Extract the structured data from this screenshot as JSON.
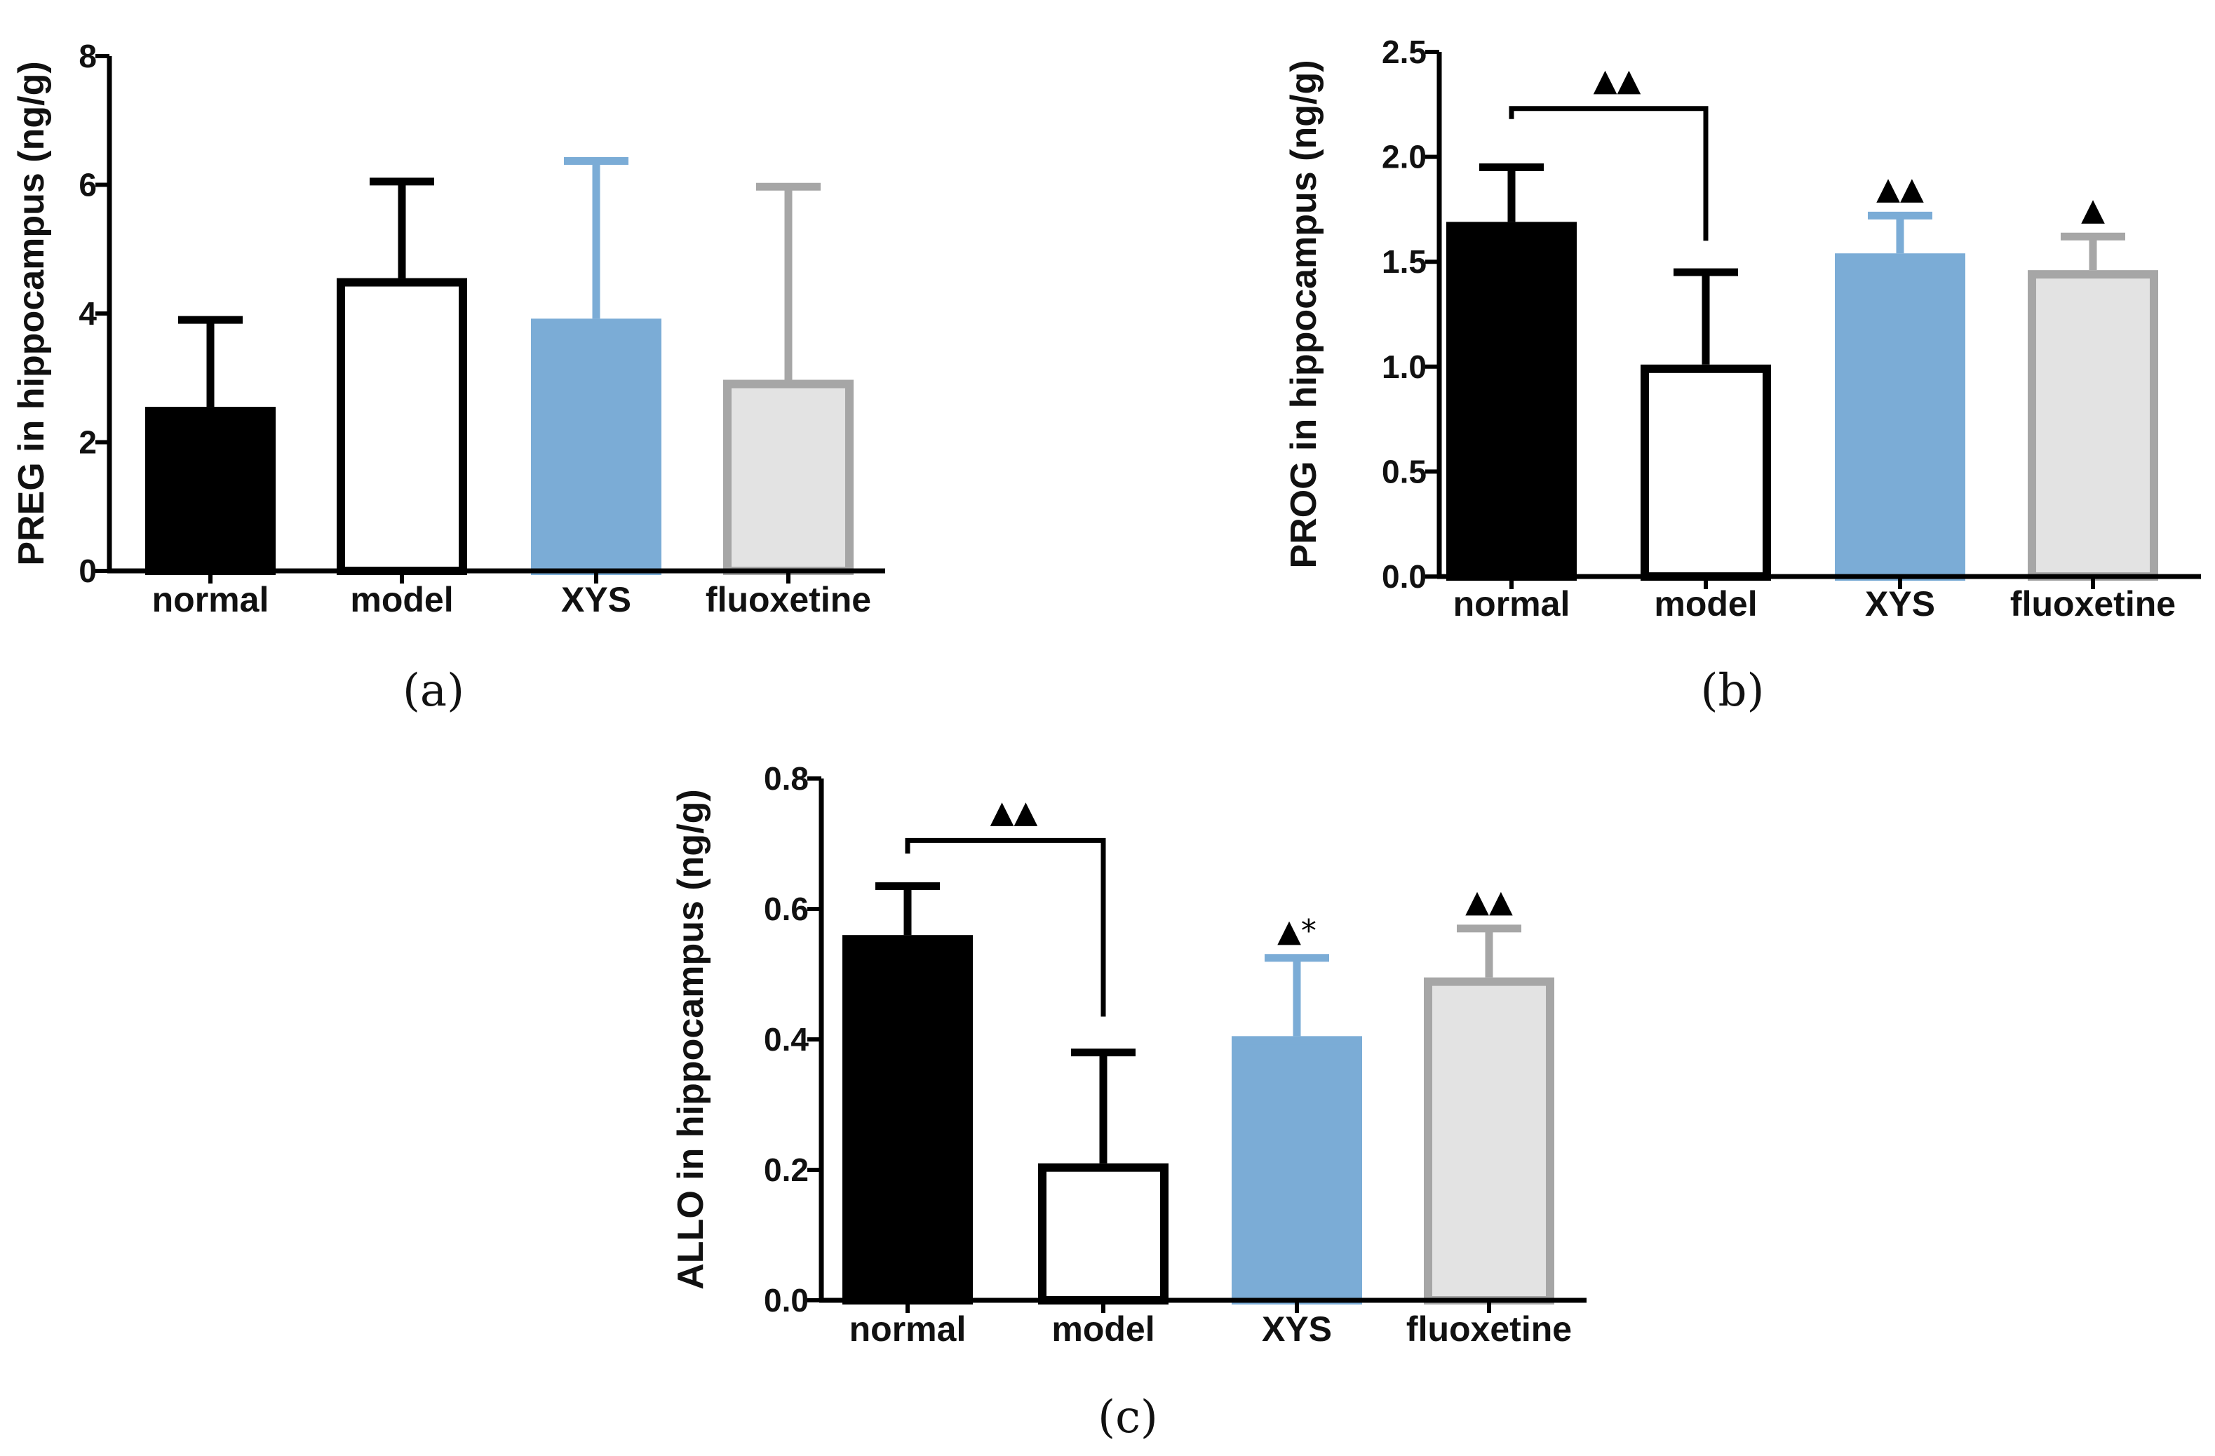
{
  "chart_data": [
    {
      "type": "bar",
      "panel_label": "(a)",
      "ylabel": "PREG in hippocampus (ng/g)",
      "ylim": [
        0,
        8
      ],
      "yticks": [
        "0",
        "2",
        "4",
        "6",
        "8"
      ],
      "yticks_values": [
        0,
        2,
        4,
        6,
        8
      ],
      "categories": [
        "normal",
        "model",
        "XYS",
        "fluoxetine"
      ],
      "values": [
        2.55,
        4.55,
        3.92,
        2.97
      ],
      "errors": [
        1.35,
        1.5,
        2.45,
        3.0
      ],
      "bar_fill": [
        "#000000",
        "#ffffff",
        "#7bacd6",
        "#e3e3e3"
      ],
      "bar_stroke": [
        "#000000",
        "#000000",
        "#7bacd6",
        "#a6a6a6"
      ],
      "significance_marks": [
        "",
        "",
        "",
        ""
      ],
      "bracket": null
    },
    {
      "type": "bar",
      "panel_label": "(b)",
      "ylabel": "PROG in hippocampus (ng/g)",
      "ylim": [
        0,
        2.5
      ],
      "yticks": [
        "0.0",
        "0.5",
        "1.0",
        "1.5",
        "2.0",
        "2.5"
      ],
      "yticks_values": [
        0,
        0.5,
        1.0,
        1.5,
        2.0,
        2.5
      ],
      "categories": [
        "normal",
        "model",
        "XYS",
        "fluoxetine"
      ],
      "values": [
        1.69,
        1.01,
        1.54,
        1.46
      ],
      "errors": [
        0.26,
        0.44,
        0.18,
        0.16
      ],
      "bar_fill": [
        "#000000",
        "#ffffff",
        "#7bacd6",
        "#e3e3e3"
      ],
      "bar_stroke": [
        "#000000",
        "#000000",
        "#7bacd6",
        "#a6a6a6"
      ],
      "significance_marks": [
        "",
        "",
        "▲▲",
        "▲"
      ],
      "bracket": {
        "from": 0,
        "to": 1,
        "value": 2.23,
        "from_end": 2.18,
        "to_end": 1.6,
        "label": "▲▲"
      }
    },
    {
      "type": "bar",
      "panel_label": "(c)",
      "ylabel": "ALLO in hippocampus (ng/g)",
      "ylim": [
        0,
        0.8
      ],
      "yticks": [
        "0.0",
        "0.2",
        "0.4",
        "0.6",
        "0.8"
      ],
      "yticks_values": [
        0,
        0.2,
        0.4,
        0.6,
        0.8
      ],
      "categories": [
        "normal",
        "model",
        "XYS",
        "fluoxetine"
      ],
      "values": [
        0.56,
        0.21,
        0.405,
        0.495
      ],
      "errors": [
        0.075,
        0.17,
        0.12,
        0.075
      ],
      "bar_fill": [
        "#000000",
        "#ffffff",
        "#7bacd6",
        "#e3e3e3"
      ],
      "bar_stroke": [
        "#000000",
        "#000000",
        "#7bacd6",
        "#a6a6a6"
      ],
      "significance_marks": [
        "",
        "",
        "▲*",
        "▲▲"
      ],
      "bracket": {
        "from": 0,
        "to": 1,
        "value": 0.705,
        "from_end": 0.685,
        "to_end": 0.435,
        "label": "▲▲"
      }
    }
  ]
}
